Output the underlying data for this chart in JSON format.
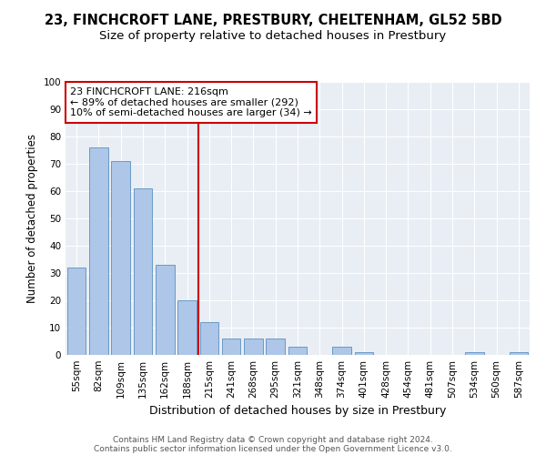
{
  "title": "23, FINCHCROFT LANE, PRESTBURY, CHELTENHAM, GL52 5BD",
  "subtitle": "Size of property relative to detached houses in Prestbury",
  "xlabel": "Distribution of detached houses by size in Prestbury",
  "ylabel": "Number of detached properties",
  "categories": [
    "55sqm",
    "82sqm",
    "109sqm",
    "135sqm",
    "162sqm",
    "188sqm",
    "215sqm",
    "241sqm",
    "268sqm",
    "295sqm",
    "321sqm",
    "348sqm",
    "374sqm",
    "401sqm",
    "428sqm",
    "454sqm",
    "481sqm",
    "507sqm",
    "534sqm",
    "560sqm",
    "587sqm"
  ],
  "values": [
    32,
    76,
    71,
    61,
    33,
    20,
    12,
    6,
    6,
    6,
    3,
    0,
    3,
    1,
    0,
    0,
    0,
    0,
    1,
    0,
    1
  ],
  "bar_color": "#aec6e8",
  "bar_edge_color": "#5a8fc0",
  "vline_index": 6,
  "vline_color": "#cc0000",
  "annotation_line1": "23 FINCHCROFT LANE: 216sqm",
  "annotation_line2": "← 89% of detached houses are smaller (292)",
  "annotation_line3": "10% of semi-detached houses are larger (34) →",
  "annotation_box_color": "#cc0000",
  "ylim": [
    0,
    100
  ],
  "yticks": [
    0,
    10,
    20,
    30,
    40,
    50,
    60,
    70,
    80,
    90,
    100
  ],
  "background_color": "#e8eef4",
  "footer_line1": "Contains HM Land Registry data © Crown copyright and database right 2024.",
  "footer_line2": "Contains public sector information licensed under the Open Government Licence v3.0.",
  "title_fontsize": 10.5,
  "subtitle_fontsize": 9.5,
  "xlabel_fontsize": 9,
  "ylabel_fontsize": 8.5,
  "tick_fontsize": 7.5,
  "annotation_fontsize": 8,
  "footer_fontsize": 6.5
}
